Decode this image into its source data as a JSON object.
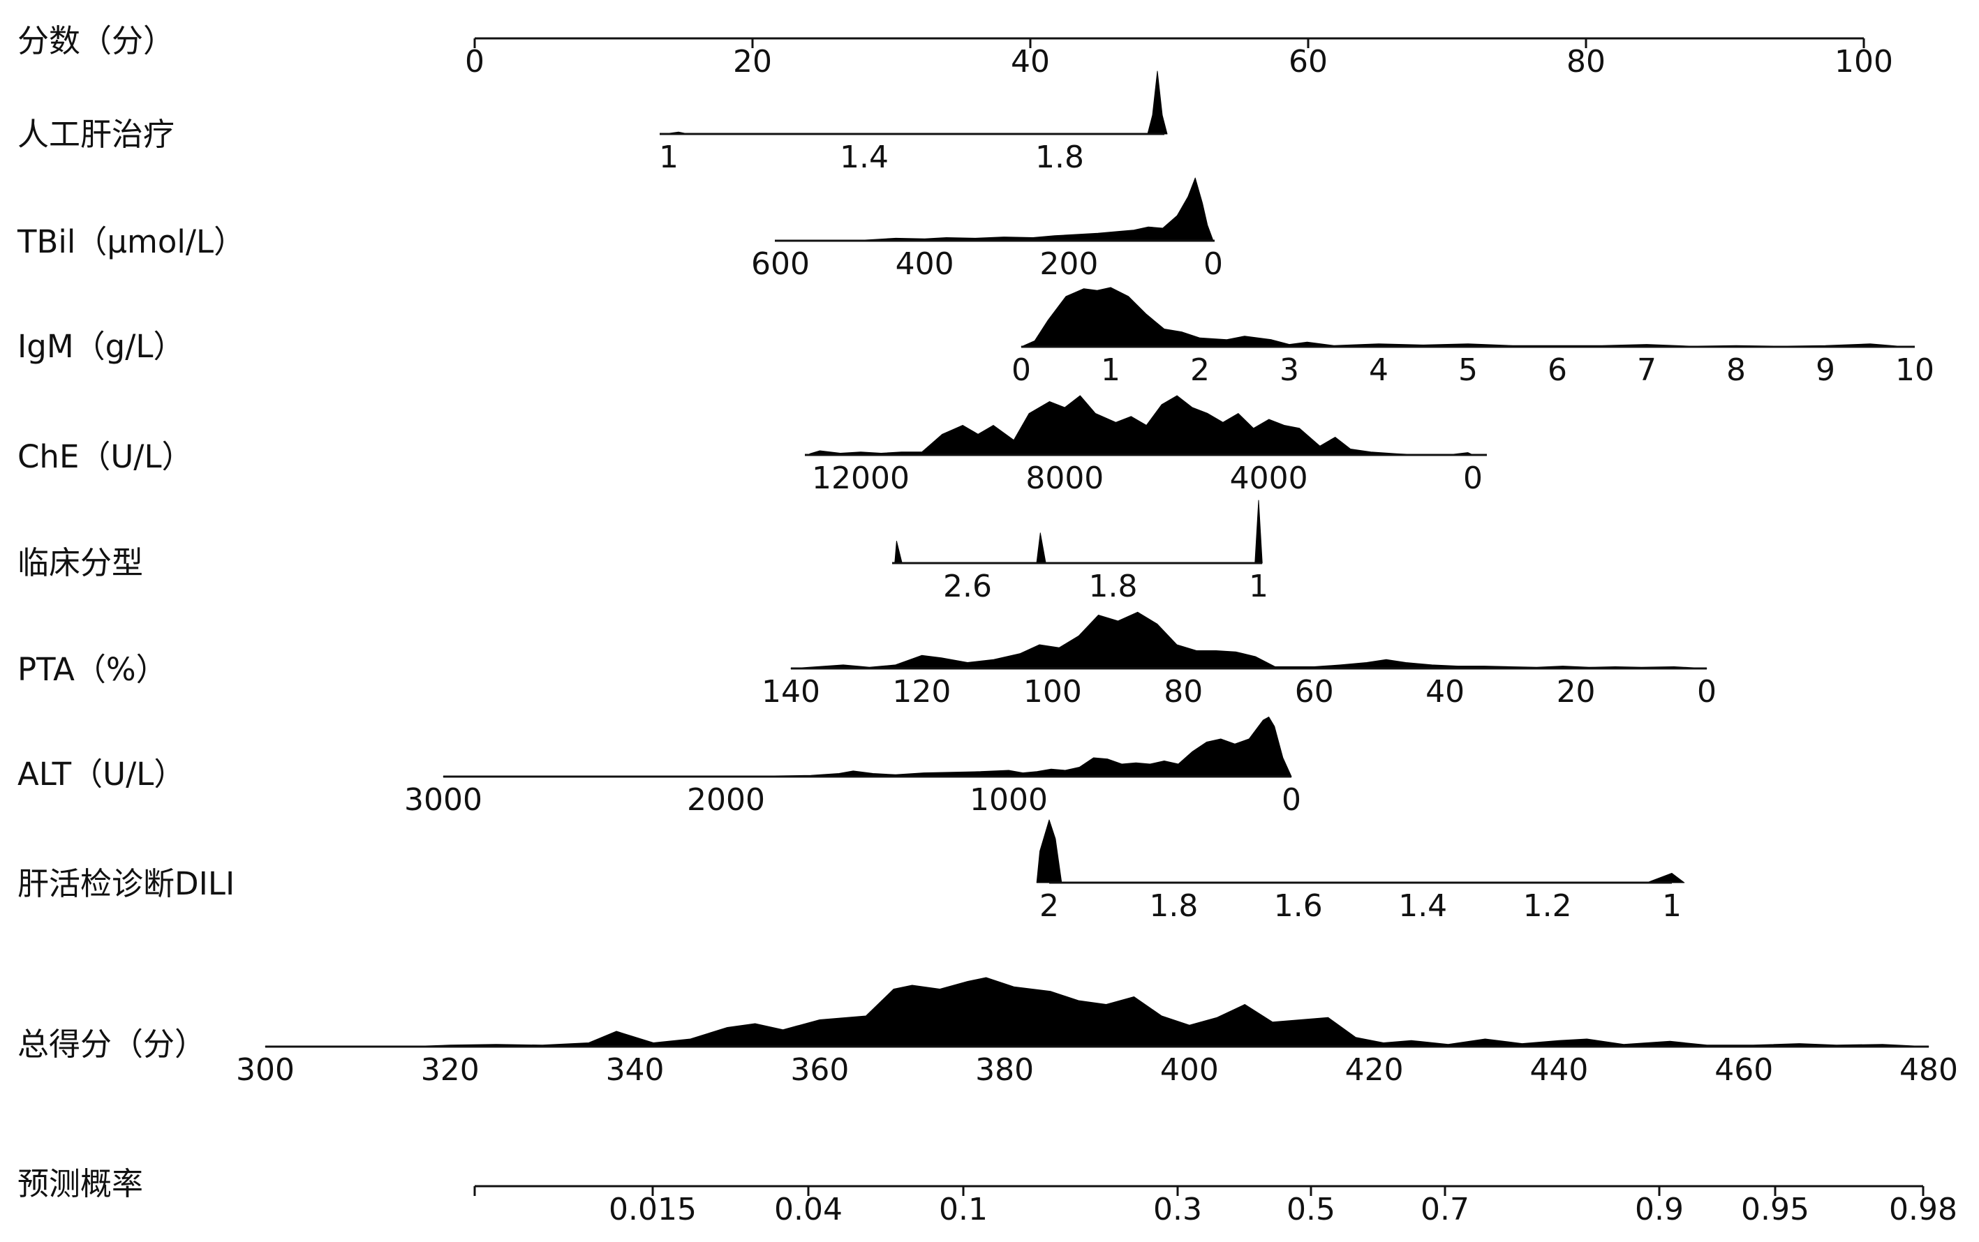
{
  "chart_data": {
    "type": "nomogram",
    "rows": [
      {
        "key": "points",
        "label": "分数（分）",
        "ticks": [
          "0",
          "20",
          "40",
          "60",
          "80",
          "100"
        ],
        "tick_values": [
          0,
          20,
          40,
          60,
          80,
          100
        ],
        "range": [
          0,
          100
        ]
      },
      {
        "key": "alsys",
        "label": "人工肝治疗",
        "ticks": [
          "1",
          "1.4",
          "1.8"
        ],
        "tick_values": [
          1,
          1.4,
          1.8
        ],
        "range": [
          1,
          2
        ],
        "density": [
          [
            1,
            0.01
          ],
          [
            1.02,
            0.03
          ],
          [
            1.04,
            0.0
          ],
          [
            1.5,
            0.0
          ],
          [
            1.98,
            0.0
          ],
          [
            1.99,
            0.3
          ],
          [
            2.0,
            1.0
          ],
          [
            2.01,
            0.3
          ],
          [
            2.02,
            0.0
          ]
        ]
      },
      {
        "key": "tbil",
        "label": "TBil（μmol/L）",
        "ticks": [
          "600",
          "400",
          "200",
          "0"
        ],
        "tick_values": [
          600,
          400,
          200,
          0
        ],
        "range": [
          600,
          0
        ],
        "density": [
          [
            600,
            0.0
          ],
          [
            500,
            0.0
          ],
          [
            470,
            0.02
          ],
          [
            440,
            0.04
          ],
          [
            400,
            0.03
          ],
          [
            370,
            0.05
          ],
          [
            330,
            0.04
          ],
          [
            290,
            0.06
          ],
          [
            250,
            0.05
          ],
          [
            220,
            0.08
          ],
          [
            190,
            0.1
          ],
          [
            160,
            0.12
          ],
          [
            130,
            0.15
          ],
          [
            110,
            0.17
          ],
          [
            90,
            0.22
          ],
          [
            70,
            0.2
          ],
          [
            50,
            0.4
          ],
          [
            35,
            0.7
          ],
          [
            25,
            1.0
          ],
          [
            15,
            0.6
          ],
          [
            8,
            0.25
          ],
          [
            0,
            0.0
          ]
        ]
      },
      {
        "key": "igm",
        "label": "IgM（g/L）",
        "ticks": [
          "0",
          "1",
          "2",
          "3",
          "4",
          "5",
          "6",
          "7",
          "8",
          "9",
          "10"
        ],
        "tick_values": [
          0,
          1,
          2,
          3,
          4,
          5,
          6,
          7,
          8,
          9,
          10
        ],
        "range": [
          0,
          10
        ],
        "density": [
          [
            0,
            0.0
          ],
          [
            0.15,
            0.1
          ],
          [
            0.3,
            0.45
          ],
          [
            0.5,
            0.85
          ],
          [
            0.7,
            0.98
          ],
          [
            0.85,
            0.95
          ],
          [
            1.0,
            1.0
          ],
          [
            1.2,
            0.85
          ],
          [
            1.4,
            0.55
          ],
          [
            1.6,
            0.3
          ],
          [
            1.8,
            0.25
          ],
          [
            2.0,
            0.15
          ],
          [
            2.3,
            0.12
          ],
          [
            2.5,
            0.18
          ],
          [
            2.8,
            0.12
          ],
          [
            3.0,
            0.04
          ],
          [
            3.2,
            0.08
          ],
          [
            3.5,
            0.02
          ],
          [
            4.0,
            0.05
          ],
          [
            4.5,
            0.03
          ],
          [
            5.0,
            0.05
          ],
          [
            5.5,
            0.02
          ],
          [
            6.0,
            0.02
          ],
          [
            6.5,
            0.02
          ],
          [
            7.0,
            0.04
          ],
          [
            7.5,
            0.01
          ],
          [
            8.0,
            0.02
          ],
          [
            8.5,
            0.01
          ],
          [
            9.0,
            0.02
          ],
          [
            9.5,
            0.05
          ],
          [
            9.9,
            0.0
          ]
        ]
      },
      {
        "key": "che",
        "label": "ChE（U/L）",
        "ticks": [
          "12000",
          "8000",
          "4000",
          "0"
        ],
        "tick_values": [
          12000,
          8000,
          4000,
          0
        ],
        "range": [
          13000,
          0
        ],
        "density": [
          [
            13000,
            0.02
          ],
          [
            12800,
            0.07
          ],
          [
            12400,
            0.03
          ],
          [
            12000,
            0.05
          ],
          [
            11600,
            0.03
          ],
          [
            11200,
            0.05
          ],
          [
            10800,
            0.05
          ],
          [
            10400,
            0.35
          ],
          [
            10000,
            0.5
          ],
          [
            9700,
            0.35
          ],
          [
            9400,
            0.5
          ],
          [
            9000,
            0.25
          ],
          [
            8700,
            0.7
          ],
          [
            8300,
            0.9
          ],
          [
            8000,
            0.8
          ],
          [
            7700,
            1.0
          ],
          [
            7400,
            0.7
          ],
          [
            7000,
            0.55
          ],
          [
            6700,
            0.65
          ],
          [
            6400,
            0.5
          ],
          [
            6100,
            0.85
          ],
          [
            5800,
            1.0
          ],
          [
            5500,
            0.8
          ],
          [
            5200,
            0.7
          ],
          [
            4900,
            0.55
          ],
          [
            4600,
            0.7
          ],
          [
            4300,
            0.45
          ],
          [
            4000,
            0.6
          ],
          [
            3700,
            0.5
          ],
          [
            3400,
            0.45
          ],
          [
            3000,
            0.15
          ],
          [
            2700,
            0.3
          ],
          [
            2400,
            0.1
          ],
          [
            2000,
            0.05
          ],
          [
            1500,
            0.02
          ],
          [
            1000,
            0.0
          ],
          [
            500,
            0.0
          ],
          [
            100,
            0.04
          ],
          [
            0,
            0.0
          ]
        ]
      },
      {
        "key": "clinical_type",
        "label": "临床分型",
        "ticks": [
          "2.6",
          "1.8",
          "1"
        ],
        "tick_values": [
          2.6,
          1.8,
          1
        ],
        "range": [
          3,
          1
        ],
        "density": [
          [
            3,
            0.0
          ],
          [
            2.99,
            0.35
          ],
          [
            2.96,
            0.0
          ],
          [
            2.22,
            0.0
          ],
          [
            2.2,
            0.48
          ],
          [
            2.17,
            0.0
          ],
          [
            1.02,
            0.0
          ],
          [
            1.0,
            1.0
          ],
          [
            0.98,
            0.0
          ]
        ]
      },
      {
        "key": "pta",
        "label": "PTA（%）",
        "ticks": [
          "140",
          "120",
          "100",
          "80",
          "60",
          "40",
          "20",
          "0"
        ],
        "tick_values": [
          140,
          120,
          100,
          80,
          60,
          40,
          20,
          0
        ],
        "range": [
          140,
          0
        ],
        "density": [
          [
            140,
            0.0
          ],
          [
            136,
            0.03
          ],
          [
            132,
            0.06
          ],
          [
            128,
            0.02
          ],
          [
            124,
            0.06
          ],
          [
            120,
            0.22
          ],
          [
            117,
            0.18
          ],
          [
            113,
            0.1
          ],
          [
            109,
            0.15
          ],
          [
            105,
            0.25
          ],
          [
            102,
            0.4
          ],
          [
            99,
            0.35
          ],
          [
            96,
            0.55
          ],
          [
            93,
            0.9
          ],
          [
            90,
            0.8
          ],
          [
            87,
            0.95
          ],
          [
            84,
            0.75
          ],
          [
            81,
            0.4
          ],
          [
            78,
            0.3
          ],
          [
            75,
            0.3
          ],
          [
            72,
            0.28
          ],
          [
            69,
            0.2
          ],
          [
            66,
            0.03
          ],
          [
            60,
            0.03
          ],
          [
            56,
            0.06
          ],
          [
            52,
            0.1
          ],
          [
            49,
            0.15
          ],
          [
            46,
            0.1
          ],
          [
            42,
            0.06
          ],
          [
            38,
            0.04
          ],
          [
            34,
            0.04
          ],
          [
            30,
            0.03
          ],
          [
            26,
            0.02
          ],
          [
            22,
            0.04
          ],
          [
            18,
            0.02
          ],
          [
            14,
            0.03
          ],
          [
            10,
            0.02
          ],
          [
            5,
            0.03
          ],
          [
            0,
            0.0
          ]
        ]
      },
      {
        "key": "alt",
        "label": "ALT（U/L）",
        "ticks": [
          "3000",
          "2000",
          "1000",
          "0"
        ],
        "tick_values": [
          3000,
          2000,
          1000,
          0
        ],
        "range": [
          3000,
          0
        ],
        "density": [
          [
            3000,
            0.0
          ],
          [
            2000,
            0.0
          ],
          [
            1700,
            0.02
          ],
          [
            1600,
            0.05
          ],
          [
            1550,
            0.09
          ],
          [
            1480,
            0.05
          ],
          [
            1400,
            0.03
          ],
          [
            1300,
            0.06
          ],
          [
            1200,
            0.07
          ],
          [
            1100,
            0.08
          ],
          [
            1000,
            0.1
          ],
          [
            950,
            0.06
          ],
          [
            900,
            0.08
          ],
          [
            850,
            0.12
          ],
          [
            800,
            0.1
          ],
          [
            750,
            0.15
          ],
          [
            700,
            0.3
          ],
          [
            650,
            0.28
          ],
          [
            600,
            0.2
          ],
          [
            550,
            0.22
          ],
          [
            500,
            0.2
          ],
          [
            450,
            0.25
          ],
          [
            400,
            0.2
          ],
          [
            350,
            0.4
          ],
          [
            300,
            0.55
          ],
          [
            250,
            0.6
          ],
          [
            200,
            0.52
          ],
          [
            150,
            0.6
          ],
          [
            100,
            0.9
          ],
          [
            80,
            0.95
          ],
          [
            60,
            0.8
          ],
          [
            30,
            0.3
          ],
          [
            0,
            0.0
          ]
        ]
      },
      {
        "key": "biopsy",
        "label": "肝活检诊断DILI",
        "ticks": [
          "2",
          "1.8",
          "1.6",
          "1.4",
          "1.2",
          "1"
        ],
        "tick_values": [
          2,
          1.8,
          1.6,
          1.4,
          1.2,
          1
        ],
        "range": [
          2,
          1
        ],
        "density": [
          [
            2.02,
            0.0
          ],
          [
            2.015,
            0.5
          ],
          [
            2.0,
            1.0
          ],
          [
            1.99,
            0.7
          ],
          [
            1.98,
            0.0
          ],
          [
            1.04,
            0.0
          ],
          [
            1.0,
            0.15
          ],
          [
            0.98,
            0.0
          ]
        ]
      },
      {
        "key": "total",
        "label": "总得分（分）",
        "ticks": [
          "300",
          "320",
          "340",
          "360",
          "380",
          "400",
          "420",
          "440",
          "460",
          "480"
        ],
        "tick_values": [
          300,
          320,
          340,
          360,
          380,
          400,
          420,
          440,
          460,
          480
        ],
        "range": [
          300,
          480
        ],
        "density": [
          [
            300,
            0.0
          ],
          [
            315,
            0.0
          ],
          [
            320,
            0.02
          ],
          [
            325,
            0.03
          ],
          [
            330,
            0.02
          ],
          [
            335,
            0.05
          ],
          [
            338,
            0.2
          ],
          [
            342,
            0.05
          ],
          [
            346,
            0.1
          ],
          [
            350,
            0.25
          ],
          [
            353,
            0.3
          ],
          [
            356,
            0.22
          ],
          [
            360,
            0.35
          ],
          [
            365,
            0.4
          ],
          [
            368,
            0.75
          ],
          [
            370,
            0.8
          ],
          [
            373,
            0.75
          ],
          [
            376,
            0.85
          ],
          [
            378,
            0.9
          ],
          [
            381,
            0.78
          ],
          [
            385,
            0.72
          ],
          [
            388,
            0.6
          ],
          [
            391,
            0.55
          ],
          [
            394,
            0.65
          ],
          [
            397,
            0.4
          ],
          [
            400,
            0.28
          ],
          [
            403,
            0.38
          ],
          [
            406,
            0.55
          ],
          [
            409,
            0.32
          ],
          [
            412,
            0.35
          ],
          [
            415,
            0.38
          ],
          [
            418,
            0.12
          ],
          [
            421,
            0.05
          ],
          [
            424,
            0.08
          ],
          [
            428,
            0.03
          ],
          [
            432,
            0.1
          ],
          [
            436,
            0.04
          ],
          [
            440,
            0.08
          ],
          [
            443,
            0.1
          ],
          [
            447,
            0.03
          ],
          [
            452,
            0.07
          ],
          [
            456,
            0.02
          ],
          [
            461,
            0.02
          ],
          [
            466,
            0.04
          ],
          [
            470,
            0.02
          ],
          [
            475,
            0.03
          ],
          [
            480,
            0.0
          ]
        ]
      },
      {
        "key": "prob",
        "label": "预测概率",
        "ticks": [
          "0.015",
          "0.04",
          "0.1",
          "0.3",
          "0.5",
          "0.7",
          "0.9",
          "0.95",
          "0.98"
        ],
        "tick_values": [
          0.015,
          0.04,
          0.1,
          0.3,
          0.5,
          0.7,
          0.9,
          0.95,
          0.98
        ],
        "range": [
          0.005,
          0.98
        ]
      }
    ]
  }
}
